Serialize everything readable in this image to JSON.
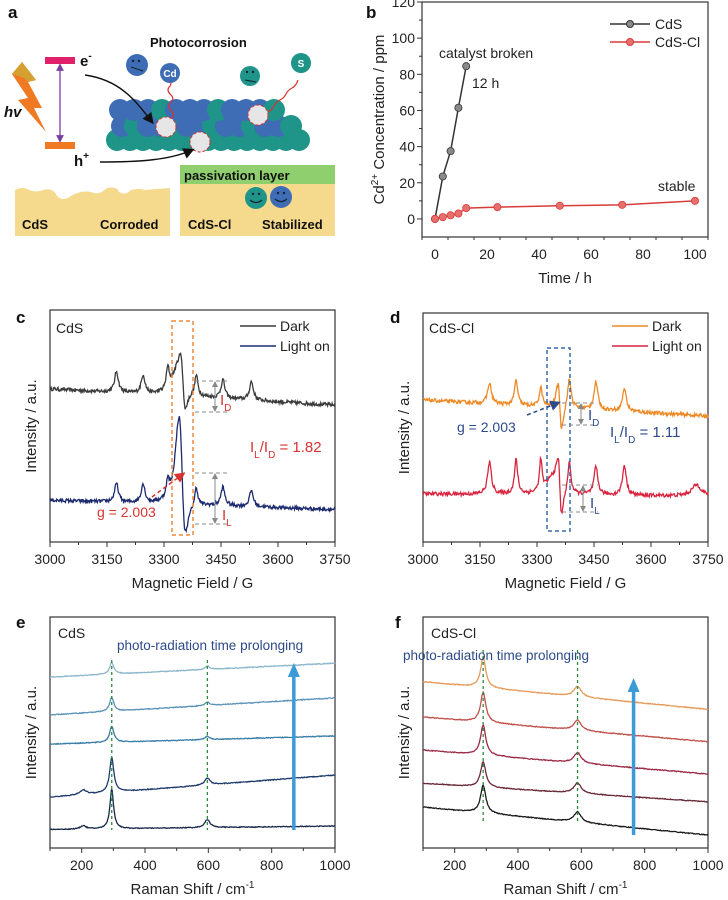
{
  "panel_a": {
    "label": "a",
    "title": "Photocorrosion",
    "electron": {
      "base": "e",
      "sup": "-"
    },
    "hole": {
      "base": "h",
      "sup": "+"
    },
    "light": "hv",
    "cd_atom": "Cd",
    "s_atom": "S",
    "passivation": "passivation layer",
    "left_box": {
      "name": "CdS",
      "state": "Corroded"
    },
    "right_box": {
      "name": "CdS-Cl",
      "state": "Stabilized"
    },
    "colors": {
      "cd": "#3e6db5",
      "s": "#1f9488",
      "sand": "#f5d98c",
      "passivation": "#8fcf6e",
      "cb": "#e0206a",
      "vb": "#f07a22"
    }
  },
  "chart_data": [
    {
      "panel": "b",
      "type": "line",
      "xlabel": "Time / h",
      "ylabel": {
        "base": "Cd",
        "sup": "2+",
        "rest": " Concentration / ppm"
      },
      "xlim": [
        -5,
        105
      ],
      "ylim": [
        -10,
        120
      ],
      "xticks": [
        0,
        20,
        40,
        60,
        80,
        100
      ],
      "yticks": [
        0,
        20,
        40,
        60,
        80,
        100,
        120
      ],
      "legend": "top-right",
      "series": [
        {
          "name": "CdS",
          "color": "#333333",
          "marker": "#8a8a8a",
          "x": [
            0,
            3,
            6,
            9,
            12
          ],
          "y": [
            0,
            23.5,
            37.5,
            61.5,
            84.5
          ]
        },
        {
          "name": "CdS-Cl",
          "color": "#d83a3a",
          "marker": "#e8706c",
          "x": [
            0,
            3,
            6,
            9,
            12,
            24,
            48,
            72,
            100
          ],
          "y": [
            0,
            1,
            2,
            3,
            6,
            6.5,
            7.3,
            7.8,
            10
          ]
        }
      ],
      "annotations": {
        "broken": "catalyst broken",
        "time": "12 h",
        "stable": "stable"
      }
    },
    {
      "panel": "c",
      "type": "line",
      "sample": "CdS",
      "xlabel": "Magnetic Field / G",
      "ylabel": "Intensity / a.u.",
      "xlim": [
        3000,
        3750
      ],
      "ylim": [
        0,
        100
      ],
      "xticks": [
        3000,
        3150,
        3300,
        3450,
        3600,
        3750
      ],
      "legend": "top-right",
      "series": [
        {
          "name": "Dark",
          "color": "#3a3a3a",
          "baseline": [
            66,
            59
          ],
          "peaks": [
            [
              3175,
              9,
              6
            ],
            [
              3245,
              8,
              6
            ],
            [
              3310,
              9,
              5
            ],
            [
              3385,
              9,
              5
            ],
            [
              3455,
              8,
              6
            ],
            [
              3530,
              8,
              6
            ],
            [
              3335,
              10,
              18
            ]
          ],
          "derivative": [
            [
              3350,
              30,
              10
            ]
          ]
        },
        {
          "name": "Light on",
          "color": "#1c2a6e",
          "baseline": [
            18,
            14
          ],
          "peaks": [
            [
              3175,
              8,
              6
            ],
            [
              3245,
              8,
              6
            ],
            [
              3310,
              7,
              5
            ],
            [
              3385,
              8,
              5
            ],
            [
              3455,
              8,
              6
            ],
            [
              3530,
              7,
              6
            ],
            [
              3338,
              20,
              12
            ]
          ],
          "derivative": [
            [
              3348,
              55,
              13
            ]
          ]
        }
      ],
      "annotations": {
        "g": "g = 2.003",
        "id": {
          "base": "I",
          "sub": "D"
        },
        "il": {
          "base": "I",
          "sub": "L"
        },
        "ratio": {
          "i1": "I",
          "s1": "L",
          "mid": "/I",
          "s2": "D",
          "val": " = 1.82"
        },
        "color": "#d8322f",
        "box_color": "#f0883a"
      }
    },
    {
      "panel": "d",
      "type": "line",
      "sample": "CdS-Cl",
      "xlabel": "Magnetic Field / G",
      "ylabel": "Intensity / a.u.",
      "xlim": [
        3000,
        3750
      ],
      "ylim": [
        0,
        100
      ],
      "xticks": [
        3000,
        3150,
        3300,
        3450,
        3600,
        3750
      ],
      "legend": "top-right",
      "series": [
        {
          "name": "Dark",
          "color": "#ee8a26",
          "baseline": [
            62,
            55
          ],
          "peaks": [
            [
              3175,
              9,
              6
            ],
            [
              3245,
              11,
              5
            ],
            [
              3310,
              8,
              5
            ],
            [
              3385,
              13,
              6
            ],
            [
              3455,
              12,
              6
            ],
            [
              3530,
              10,
              6
            ]
          ],
          "derivative": [
            [
              3360,
              30,
              8
            ]
          ]
        },
        {
          "name": "Light on",
          "color": "#d8243e",
          "baseline": [
            21,
            20
          ],
          "peaks": [
            [
              3175,
              14,
              6
            ],
            [
              3245,
              15,
              5
            ],
            [
              3310,
              14,
              4
            ],
            [
              3385,
              14,
              5
            ],
            [
              3455,
              12,
              6
            ],
            [
              3530,
              13,
              6
            ],
            [
              3340,
              7,
              20
            ],
            [
              3720,
              5,
              15
            ]
          ],
          "derivative": [
            [
              3360,
              35,
              8
            ]
          ]
        }
      ],
      "annotations": {
        "g": "g = 2.003",
        "id": {
          "base": "I",
          "sub": "D"
        },
        "il": {
          "base": "I",
          "sub": "L"
        },
        "ratio": {
          "i1": "I",
          "s1": "L",
          "mid": "/I",
          "s2": "D",
          "val": " = 1.11"
        },
        "color": "#2c4a8c",
        "box_color": "#3a6aa8"
      }
    },
    {
      "panel": "e",
      "type": "line",
      "sample": "CdS",
      "xlabel": {
        "base": "Raman Shift / cm",
        "sup": "-1"
      },
      "ylabel": "Intensity / a.u.",
      "xlim": [
        100,
        1000
      ],
      "ylim": [
        0,
        100
      ],
      "xticks": [
        200,
        400,
        600,
        800,
        1000
      ],
      "reference_lines": [
        295,
        597
      ],
      "series": [
        {
          "color": "#1a2a4a",
          "baseline": [
            8,
            9.5
          ],
          "peaks": [
            [
              205,
              1.5,
              10
            ],
            [
              295,
              17,
              7
            ],
            [
              597,
              3.5,
              10
            ]
          ]
        },
        {
          "color": "#1f3b6e",
          "baseline": [
            22,
            31.6
          ],
          "peaks": [
            [
              205,
              2,
              12
            ],
            [
              295,
              15,
              8
            ],
            [
              597,
              3,
              10
            ]
          ]
        },
        {
          "color": "#3a7ea8",
          "baseline": [
            45,
            48.5
          ],
          "peaks": [
            [
              295,
              7,
              8
            ],
            [
              597,
              1.5,
              8
            ]
          ]
        },
        {
          "color": "#5b93b8",
          "baseline": [
            57.6,
            65
          ],
          "peaks": [
            [
              295,
              6,
              8
            ],
            [
              597,
              1.5,
              8
            ]
          ]
        },
        {
          "color": "#8cb7cc",
          "baseline": [
            74,
            80
          ],
          "peaks": [
            [
              295,
              5,
              8
            ],
            [
              597,
              1.5,
              8
            ]
          ]
        }
      ],
      "annotation": "photo-radiation time prolonging",
      "annotation_color": "#2d4a8a",
      "arrow_color": "#3c9ad6"
    },
    {
      "panel": "f",
      "type": "line",
      "sample": "CdS-Cl",
      "xlabel": {
        "base": "Raman Shift / cm",
        "sup": "-1"
      },
      "ylabel": "Intensity / a.u.",
      "xlim": [
        100,
        1000
      ],
      "ylim": [
        0,
        100
      ],
      "xticks": [
        200,
        400,
        600,
        800,
        1000
      ],
      "reference_lines": [
        290,
        588
      ],
      "series": [
        {
          "color": "#1a1a1a",
          "baseline": [
            17.7,
            5.6
          ],
          "peaks": [
            [
              290,
              12,
              10
            ],
            [
              588,
              4.5,
              14
            ]
          ]
        },
        {
          "color": "#6a2a3a",
          "baseline": [
            28,
            20
          ],
          "peaks": [
            [
              290,
              11,
              10
            ],
            [
              588,
              4.5,
              14
            ]
          ]
        },
        {
          "color": "#9b2a45",
          "baseline": [
            42.4,
            32
          ],
          "peaks": [
            [
              290,
              13,
              10
            ],
            [
              588,
              4.5,
              14
            ]
          ]
        },
        {
          "color": "#c0524a",
          "baseline": [
            56.7,
            46
          ],
          "peaks": [
            [
              290,
              13,
              10
            ],
            [
              588,
              4.5,
              14
            ]
          ]
        },
        {
          "color": "#e69a5a",
          "baseline": [
            72,
            60
          ],
          "peaks": [
            [
              290,
              13,
              10
            ],
            [
              588,
              4.5,
              14
            ]
          ]
        }
      ],
      "annotation": "photo-radiation time prolonging",
      "annotation_color": "#2d4a8a",
      "arrow_color": "#3c9ad6"
    }
  ]
}
